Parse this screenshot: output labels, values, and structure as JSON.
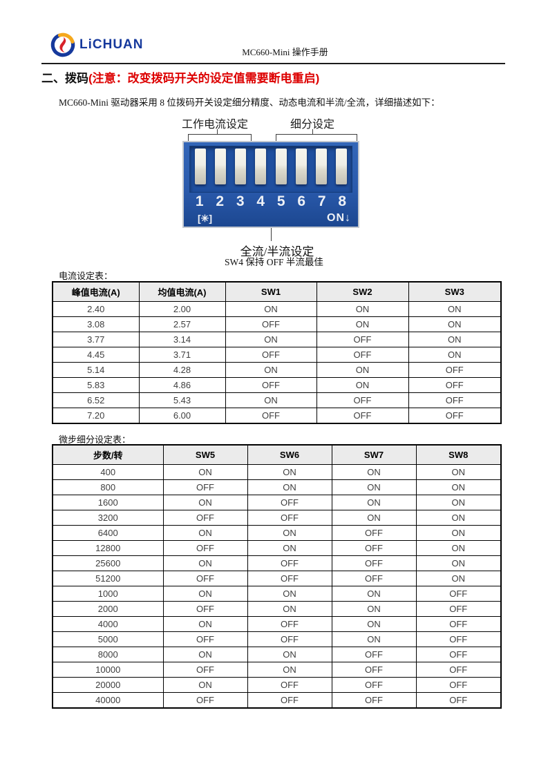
{
  "header": {
    "brand": "LiCHUAN",
    "doc_title": "MC660-Mini 操作手册"
  },
  "section": {
    "title": "二、拨码",
    "warning": "(注意：改变拨码开关的设定值需要断电重启)",
    "intro": "MC660-Mini 驱动器采用 8 位拨码开关设定细分精度、动态电流和半流/全流，详细描述如下："
  },
  "diagram": {
    "label_current": "工作电流设定",
    "label_microstep": "细分设定",
    "label_full_half": "全流/半流设定",
    "caption": "SW4 保持 OFF 半流最佳",
    "switch_numbers": [
      "1",
      "2",
      "3",
      "4",
      "5",
      "6",
      "7",
      "8"
    ],
    "mark": "[✳]",
    "on_label": "ON↓"
  },
  "current_table": {
    "caption": "电流设定表：",
    "headers": [
      "峰值电流(A)",
      "均值电流(A)",
      "SW1",
      "SW2",
      "SW3"
    ],
    "rows": [
      [
        "2.40",
        "2.00",
        "ON",
        "ON",
        "ON"
      ],
      [
        "3.08",
        "2.57",
        "OFF",
        "ON",
        "ON"
      ],
      [
        "3.77",
        "3.14",
        "ON",
        "OFF",
        "ON"
      ],
      [
        "4.45",
        "3.71",
        "OFF",
        "OFF",
        "ON"
      ],
      [
        "5.14",
        "4.28",
        "ON",
        "ON",
        "OFF"
      ],
      [
        "5.83",
        "4.86",
        "OFF",
        "ON",
        "OFF"
      ],
      [
        "6.52",
        "5.43",
        "ON",
        "OFF",
        "OFF"
      ],
      [
        "7.20",
        "6.00",
        "OFF",
        "OFF",
        "OFF"
      ]
    ]
  },
  "microstep_table": {
    "caption": "微步细分设定表：",
    "headers": [
      "步数/转",
      "SW5",
      "SW6",
      "SW7",
      "SW8"
    ],
    "rows": [
      [
        "400",
        "ON",
        "ON",
        "ON",
        "ON"
      ],
      [
        "800",
        "OFF",
        "ON",
        "ON",
        "ON"
      ],
      [
        "1600",
        "ON",
        "OFF",
        "ON",
        "ON"
      ],
      [
        "3200",
        "OFF",
        "OFF",
        "ON",
        "ON"
      ],
      [
        "6400",
        "ON",
        "ON",
        "OFF",
        "ON"
      ],
      [
        "12800",
        "OFF",
        "ON",
        "OFF",
        "ON"
      ],
      [
        "25600",
        "ON",
        "OFF",
        "OFF",
        "ON"
      ],
      [
        "51200",
        "OFF",
        "OFF",
        "OFF",
        "ON"
      ],
      [
        "1000",
        "ON",
        "ON",
        "ON",
        "OFF"
      ],
      [
        "2000",
        "OFF",
        "ON",
        "ON",
        "OFF"
      ],
      [
        "4000",
        "ON",
        "OFF",
        "ON",
        "OFF"
      ],
      [
        "5000",
        "OFF",
        "OFF",
        "ON",
        "OFF"
      ],
      [
        "8000",
        "ON",
        "ON",
        "OFF",
        "OFF"
      ],
      [
        "10000",
        "OFF",
        "ON",
        "OFF",
        "OFF"
      ],
      [
        "20000",
        "ON",
        "OFF",
        "OFF",
        "OFF"
      ],
      [
        "40000",
        "OFF",
        "OFF",
        "OFF",
        "OFF"
      ]
    ]
  },
  "colors": {
    "accent_red": "#dd0000",
    "logo_blue": "#16399c",
    "logo_orange": "#f5a81c",
    "logo_flame_red": "#d8222a",
    "dip_blue": "#2a5aac",
    "table_header_gray": "#ebebeb"
  }
}
